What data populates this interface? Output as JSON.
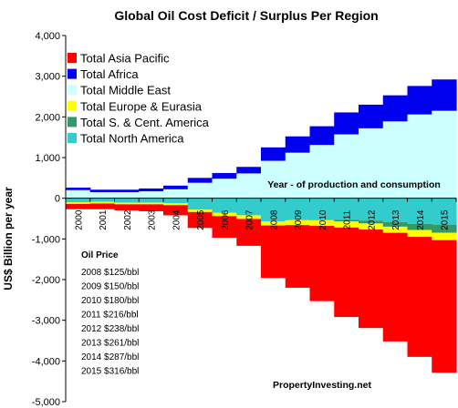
{
  "chart_data": {
    "type": "bar",
    "title": "Global Oil Cost Deficit / Surplus Per Region",
    "ylabel": "US$ Billion per year",
    "ylim": [
      -5000,
      4000
    ],
    "yticks": [
      {
        "value": 4000,
        "label": "4,000"
      },
      {
        "value": 3000,
        "label": "3,000"
      },
      {
        "value": 2000,
        "label": "2,000"
      },
      {
        "value": 1000,
        "label": "1,000"
      },
      {
        "value": 0,
        "label": "0"
      },
      {
        "value": -1000,
        "label": "-1,000"
      },
      {
        "value": -2000,
        "label": "-2,000"
      },
      {
        "value": -3000,
        "label": "-3,000"
      },
      {
        "value": -4000,
        "label": "-4,000"
      },
      {
        "value": -5000,
        "label": "-5,000"
      }
    ],
    "categories": [
      "2000",
      "2001",
      "2002",
      "2003",
      "2004",
      "2005",
      "2006",
      "2007",
      "2008",
      "2009",
      "2010",
      "2011",
      "2012",
      "2013",
      "2014",
      "2015"
    ],
    "grid": false,
    "legend_position": "top-left",
    "annotation": "Year - of production and consumption",
    "watermark": "PropertyInvesting.net",
    "series": [
      {
        "name": "Total Asia Pacific",
        "color": "#ff0000",
        "values": [
          -130,
          -140,
          -150,
          -170,
          -250,
          -390,
          -530,
          -660,
          -1290,
          -1540,
          -1850,
          -2200,
          -2420,
          -2670,
          -2950,
          -3260
        ]
      },
      {
        "name": "Total Africa",
        "color": "#0000ee",
        "values": [
          60,
          60,
          60,
          70,
          90,
          120,
          140,
          160,
          330,
          400,
          460,
          540,
          580,
          640,
          700,
          770
        ]
      },
      {
        "name": "Total Middle East",
        "color": "#ccffff",
        "values": [
          200,
          150,
          150,
          170,
          220,
          380,
          480,
          610,
          920,
          1120,
          1310,
          1570,
          1720,
          1890,
          2060,
          2150
        ]
      },
      {
        "name": "Total Europe & Eurasia",
        "color": "#ffff00",
        "values": [
          -40,
          -40,
          -40,
          -40,
          -50,
          -60,
          -80,
          -90,
          -100,
          -120,
          -140,
          -150,
          -150,
          -150,
          -170,
          -180
        ]
      },
      {
        "name": "Total S. & Cent. America",
        "color": "#339966",
        "values": [
          0,
          0,
          0,
          0,
          0,
          0,
          0,
          0,
          0,
          0,
          -10,
          -40,
          -70,
          -110,
          -150,
          -200
        ]
      },
      {
        "name": "Total North America",
        "color": "#33cccc",
        "values": [
          -100,
          -90,
          -110,
          -110,
          -120,
          -280,
          -360,
          -420,
          -570,
          -540,
          -530,
          -530,
          -550,
          -590,
          -630,
          -650
        ]
      }
    ],
    "oil_price": {
      "heading": "Oil Price",
      "lines": [
        "2008  $125/bbl",
        "2009  $150/bbl",
        "2010 $180/bbl",
        "2011 $216/bbl",
        "2012 $238/bbl",
        "2013 $261/bbl",
        "2014 $287/bbl",
        "2015 $316/bbl"
      ]
    }
  }
}
